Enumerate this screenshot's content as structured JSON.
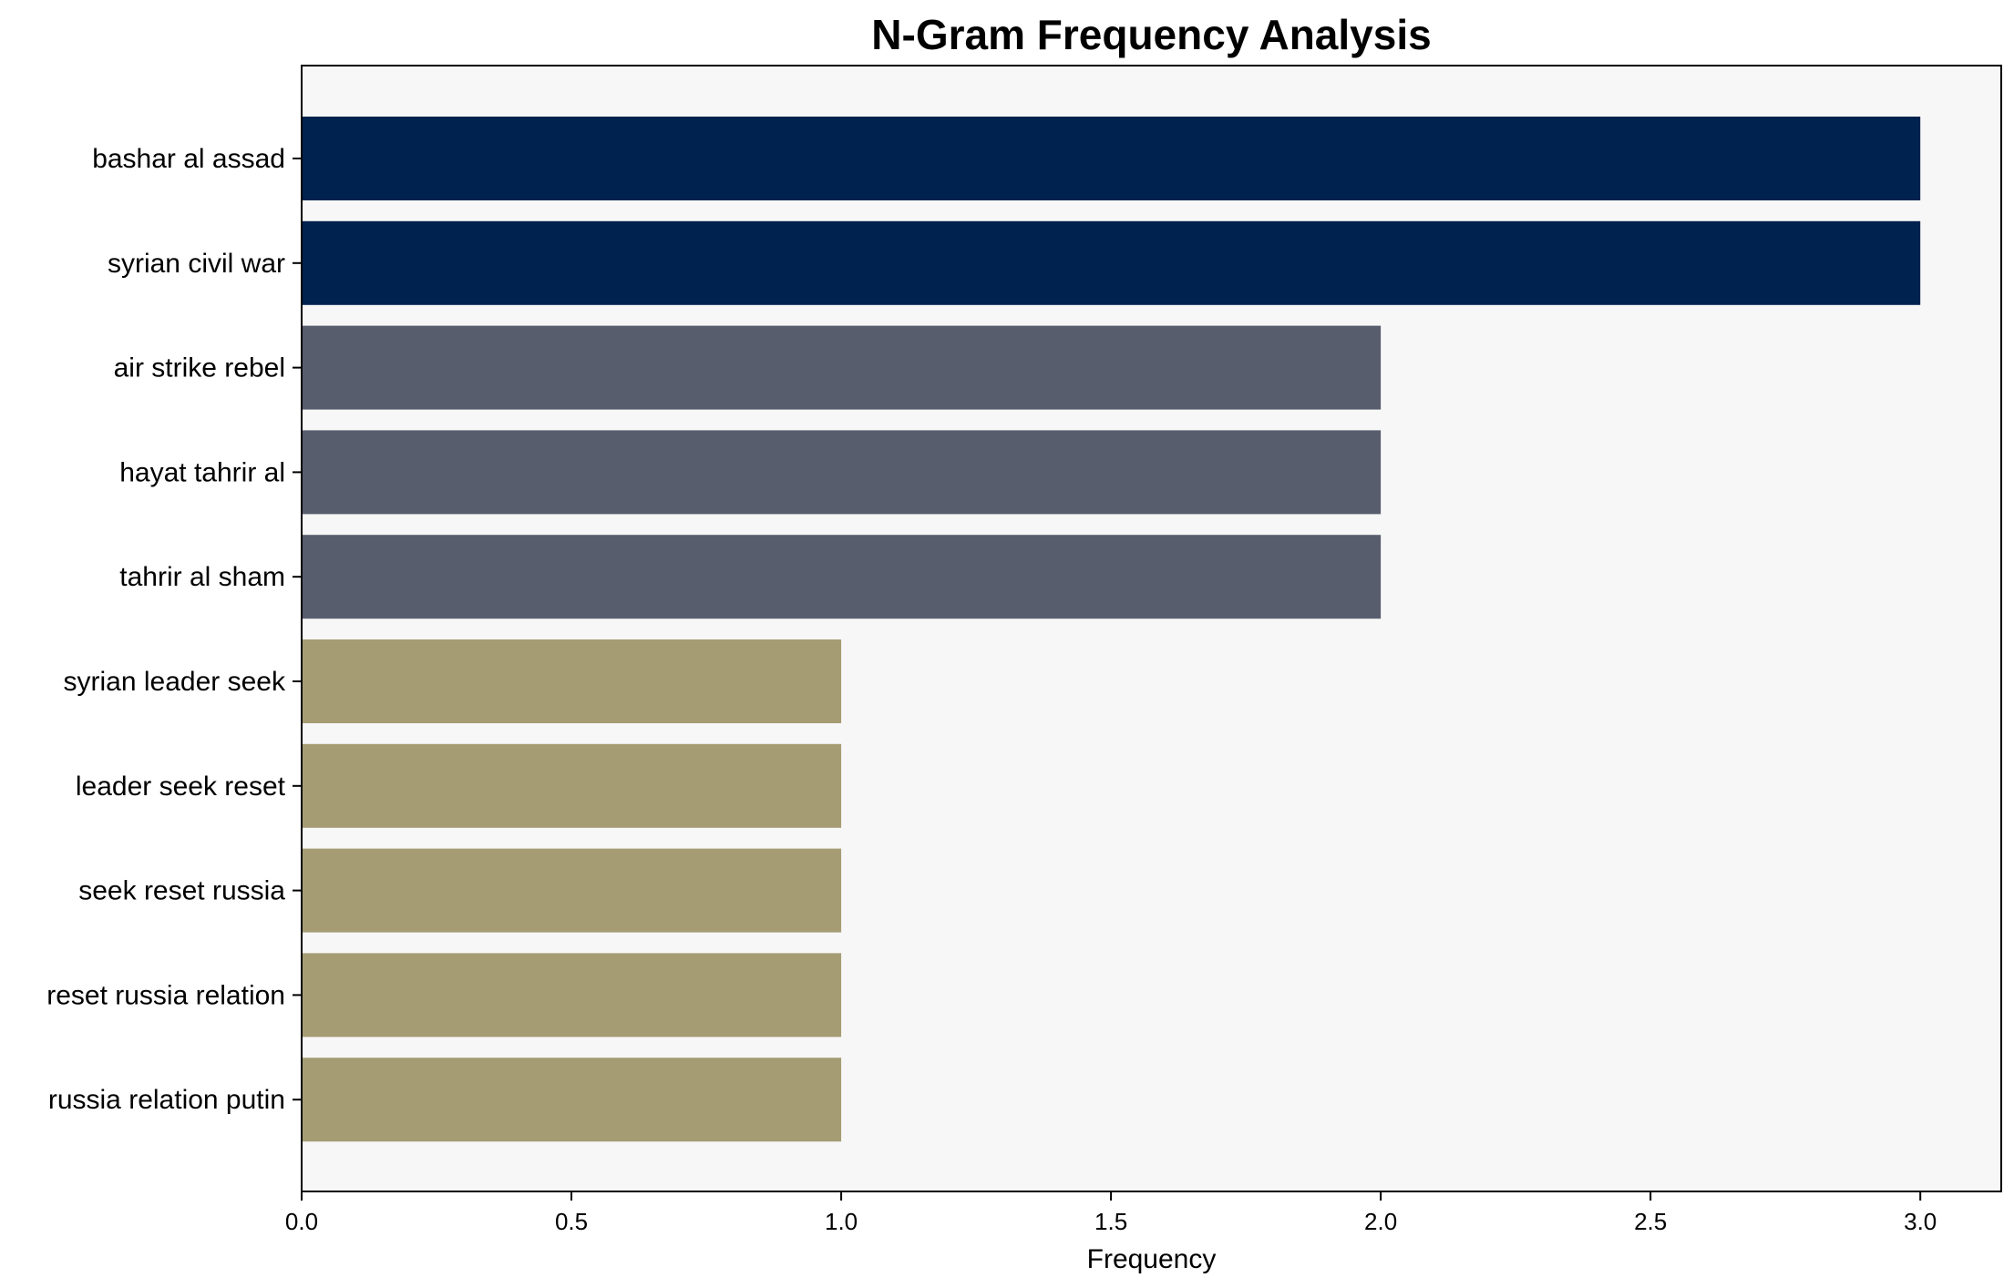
{
  "chart_data": {
    "type": "bar",
    "orientation": "horizontal",
    "title": "N-Gram Frequency Analysis",
    "xlabel": "Frequency",
    "ylabel": "",
    "categories": [
      "bashar al assad",
      "syrian civil war",
      "air strike rebel",
      "hayat tahrir al",
      "tahrir al sham",
      "syrian leader seek",
      "leader seek reset",
      "seek reset russia",
      "reset russia relation",
      "russia relation putin"
    ],
    "values": [
      3,
      3,
      2,
      2,
      2,
      1,
      1,
      1,
      1,
      1
    ],
    "bar_colors": [
      "#00224e",
      "#00224e",
      "#575d6d",
      "#575d6d",
      "#575d6d",
      "#a59c74",
      "#a59c74",
      "#a59c74",
      "#a59c74",
      "#a59c74"
    ],
    "xlim": [
      0,
      3.15
    ],
    "xticks": [
      0.0,
      0.5,
      1.0,
      1.5,
      2.0,
      2.5,
      3.0
    ],
    "xtick_labels": [
      "0.0",
      "0.5",
      "1.0",
      "1.5",
      "2.0",
      "2.5",
      "3.0"
    ],
    "grid": false,
    "plot_background": "#f7f7f7"
  }
}
